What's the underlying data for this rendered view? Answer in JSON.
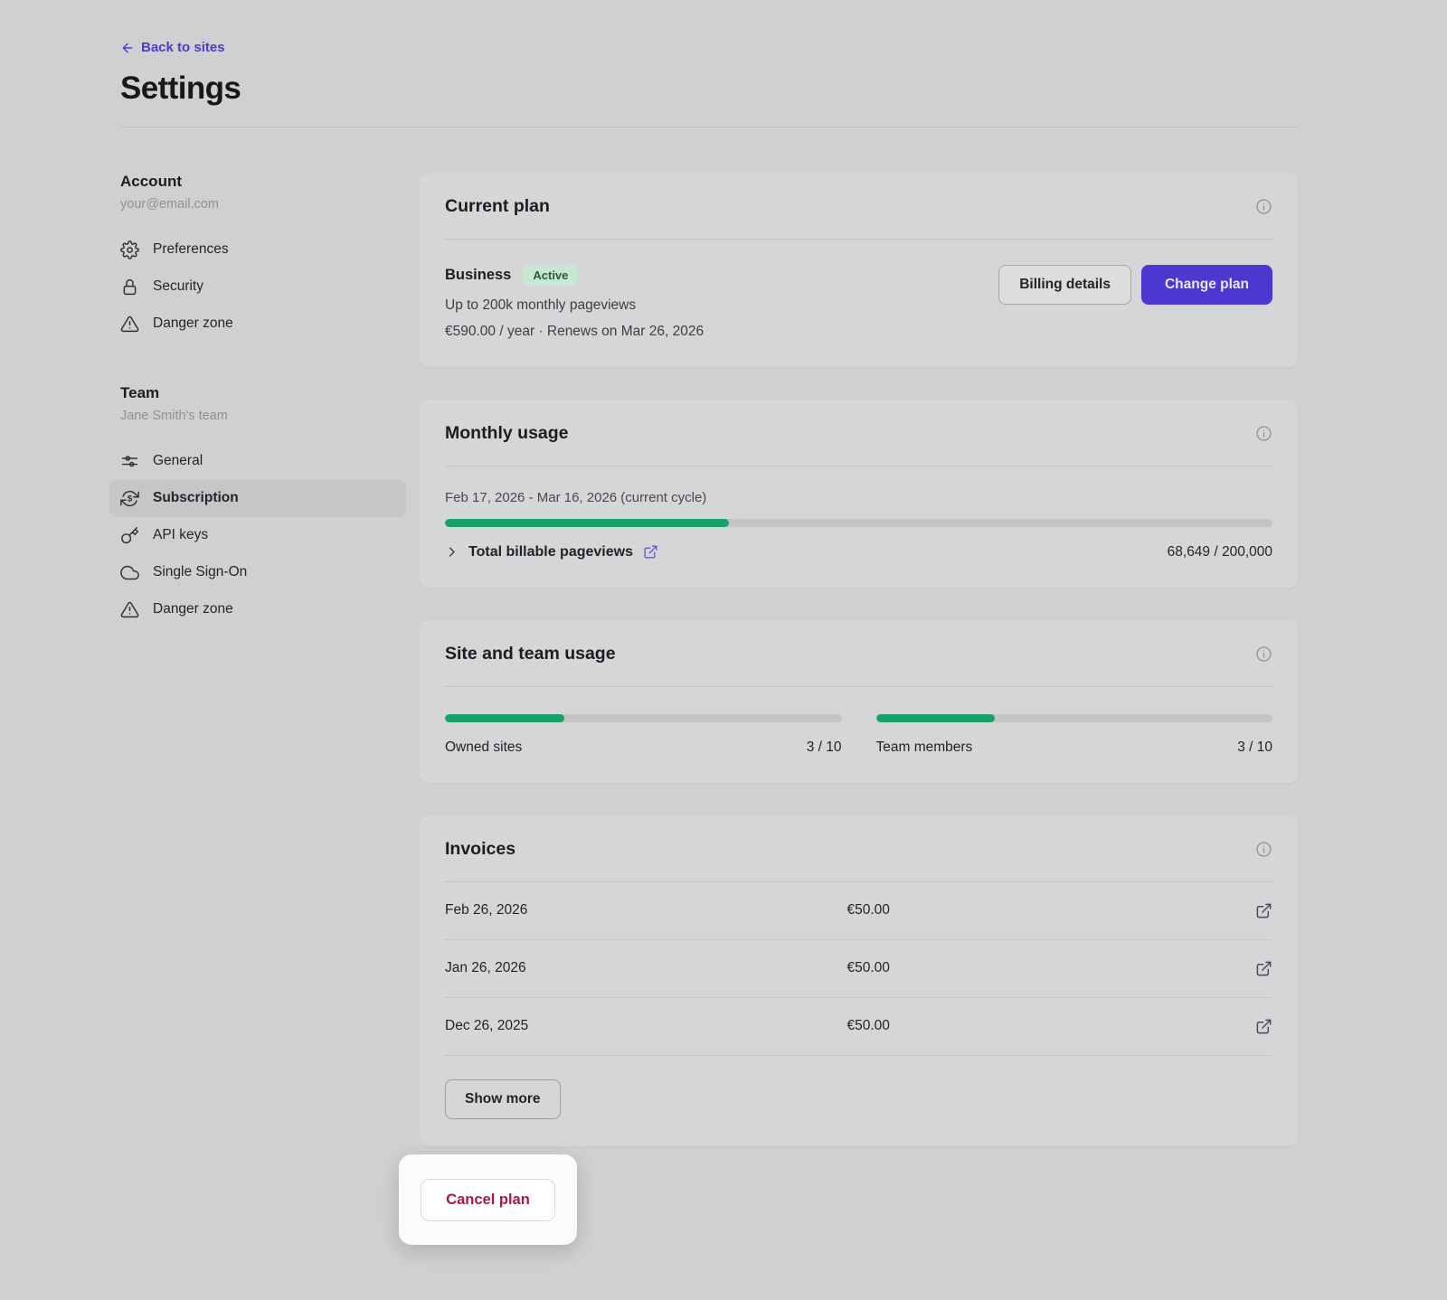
{
  "header": {
    "back_label": "Back to sites",
    "title": "Settings"
  },
  "sidebar": {
    "account": {
      "heading": "Account",
      "subtitle": "your@email.com",
      "items": [
        {
          "label": "Preferences",
          "icon": "gear-icon"
        },
        {
          "label": "Security",
          "icon": "lock-icon"
        },
        {
          "label": "Danger zone",
          "icon": "warning-icon"
        }
      ]
    },
    "team": {
      "heading": "Team",
      "subtitle": "Jane Smith's team",
      "items": [
        {
          "label": "General",
          "icon": "sliders-icon"
        },
        {
          "label": "Subscription",
          "icon": "subscription-icon",
          "active": true
        },
        {
          "label": "API keys",
          "icon": "key-icon"
        },
        {
          "label": "Single Sign-On",
          "icon": "cloud-icon"
        },
        {
          "label": "Danger zone",
          "icon": "warning-icon"
        }
      ]
    }
  },
  "current_plan": {
    "title": "Current plan",
    "plan_name": "Business",
    "status": "Active",
    "limit_text": "Up to 200k monthly pageviews",
    "price_text": "€590.00 / year · Renews on Mar 26, 2026",
    "billing_button": "Billing details",
    "change_button": "Change plan"
  },
  "monthly_usage": {
    "title": "Monthly usage",
    "cycle_text": "Feb 17, 2026 - Mar 16, 2026 (current cycle)",
    "progress_pct": 34.3,
    "row_label": "Total billable pageviews",
    "value_text": "68,649 / 200,000"
  },
  "site_team_usage": {
    "title": "Site and team usage",
    "meters": [
      {
        "label": "Owned sites",
        "value": "3 / 10",
        "pct": 30
      },
      {
        "label": "Team members",
        "value": "3 / 10",
        "pct": 30
      }
    ]
  },
  "invoices": {
    "title": "Invoices",
    "rows": [
      {
        "date": "Feb 26, 2026",
        "amount": "€50.00"
      },
      {
        "date": "Jan 26, 2026",
        "amount": "€50.00"
      },
      {
        "date": "Dec 26, 2025",
        "amount": "€50.00"
      }
    ],
    "show_more": "Show more"
  },
  "cancel_plan": {
    "label": "Cancel plan"
  },
  "colors": {
    "accent": "#4a38d0",
    "progress_green": "#18a269",
    "badge_bg": "#c8e8d4",
    "danger_red": "#ab1a3e",
    "page_bg": "#cfd0d1",
    "card_bg": "#d5d6d7"
  }
}
